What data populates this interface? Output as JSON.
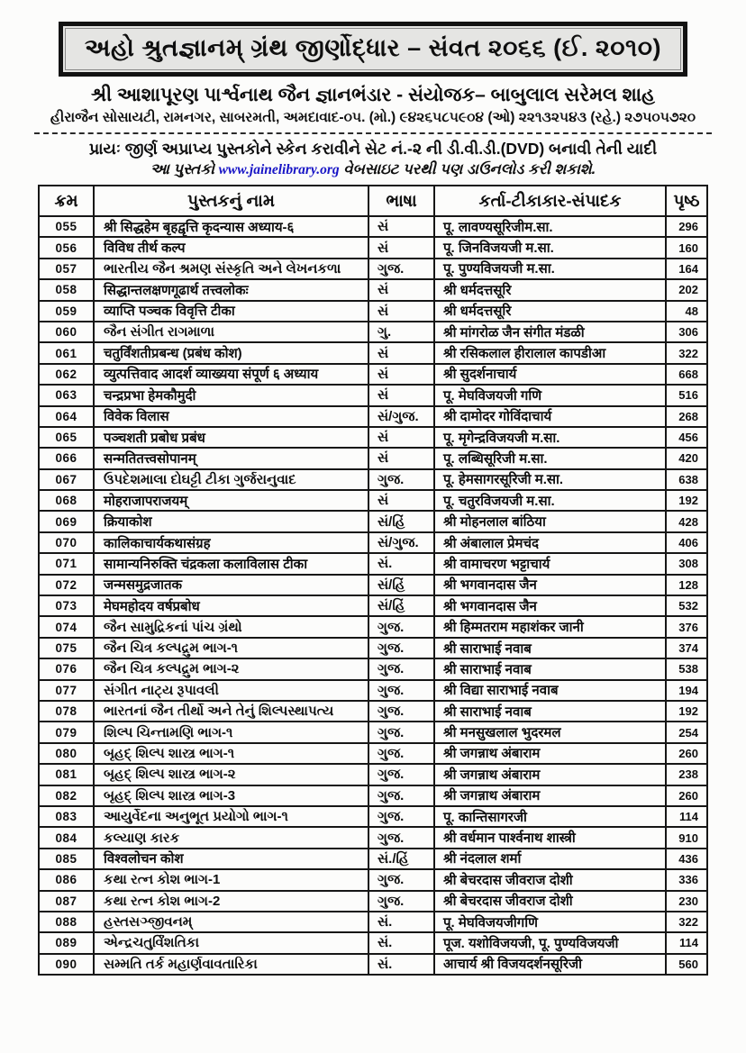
{
  "header": {
    "title": "અહો શ્રુતજ્ઞાનમ્ ગ્રંથ જીર્ણોદ્ધાર – સંવત ૨૦૬૬ (ઈ. ૨૦૧૦)",
    "organization": "શ્રી આશાપૂરણ પાર્શ્વનાથ જૈન જ્ઞાનભંડાર - સંયોજક– બાબુલાલ સરેમલ શાહ",
    "address": "હીરાજૈન સોસાયટી, રામનગર, સાબરમતી, અમદાવાદ-૦૫. (મો.) ૯૪૨૬૫૮૫૯૦૪ (ઓ) ૨૨૧૩૨૫૪૩ (રહે.) ૨૭૫૦૫૭૨૦"
  },
  "intro": {
    "line1": "પ્રાયઃ જીર્ણ અપ્રાપ્ય પુસ્તકોને સ્કેન કરાવીને સેટ નં.-૨ ની ડી.વી.ડી.(DVD) બનાવી તેની યાદી",
    "line2_prefix": "આ પુસ્તકો ",
    "link_text": "www.jainelibrary.org",
    "line2_suffix": " વેબસાઇટ પરથી પણ ડાઉનલોડ કરી શકાશે."
  },
  "colors": {
    "link_blue": "#1815c6",
    "title_box_fill": "#e5e5e3",
    "border_black": "#161616"
  },
  "table": {
    "columns": [
      "ક્રમ",
      "પુસ્તકનું નામ",
      "ભાષા",
      "કર્તા-ટીકાકાર-સંપાદક",
      "પૃષ્ઠ"
    ],
    "rows": [
      {
        "no": "055",
        "name": "श्री सिद्धहेम बृहद्वृत्ति कृदन्यास अध्याय-६",
        "lang": "સં",
        "author": "पू. लावण्यसूरिजीम.सा.",
        "pages": "296"
      },
      {
        "no": "056",
        "name": "विविध तीर्थ कल्प",
        "lang": "સં",
        "author": "पू. जिनविजयजी म.सा.",
        "pages": "160"
      },
      {
        "no": "057",
        "name": "ભારતીય જૈન શ્રમણ સંસ્કૃતિ અને લેખનકળા",
        "lang": "ગુજ.",
        "author": "पू. पुण्यविजयजी म.सा.",
        "pages": "164"
      },
      {
        "no": "058",
        "name": "सिद्धान्तलक्षणगूढार्थ तत्त्वलोकः",
        "lang": "સં",
        "author": "श्री धर्मदत्तसूरि",
        "pages": "202"
      },
      {
        "no": "059",
        "name": "व्याप्ति पञ्चक विवृत्ति टीका",
        "lang": "સં",
        "author": "श्री धर्मदत्तसूरि",
        "pages": "48"
      },
      {
        "no": "060",
        "name": "જૈન સંગીત રાગમાળા",
        "lang": "ગુ.",
        "author": "श्री मांगरोळ जैन संगीत मंडळी",
        "pages": "306"
      },
      {
        "no": "061",
        "name": "चतुर्विंशतीप्रबन्ध (प्रबंध कोश)",
        "lang": "સં",
        "author": "श्री रसिकलाल हीरालाल कापडीआ",
        "pages": "322"
      },
      {
        "no": "062",
        "name": "व्युत्पत्तिवाद आदर्श व्याख्यया संपूर्ण ६ अध्याय",
        "lang": "સં",
        "author": "श्री सुदर्शनाचार्य",
        "pages": "668"
      },
      {
        "no": "063",
        "name": "चन्द्रप्रभा हेमकौमुदी",
        "lang": "સં",
        "author": "पू. मेघविजयजी गणि",
        "pages": "516"
      },
      {
        "no": "064",
        "name": "विवेक विलास",
        "lang": "સં/ગુજ.",
        "author": "श्री दामोदर गोविंदाचार्य",
        "pages": "268"
      },
      {
        "no": "065",
        "name": "पञ्चशती प्रबोध प्रबंध",
        "lang": "સં",
        "author": "पू. मृगेन्द्रविजयजी म.सा.",
        "pages": "456"
      },
      {
        "no": "066",
        "name": "सन्मतितत्त्वसोपानम्",
        "lang": "સં",
        "author": "पू. लब्धिसूरिजी म.सा.",
        "pages": "420"
      },
      {
        "no": "067",
        "name": "ઉપદેશમાલા દોઘટ્ટી ટીકા ગુર્જરાનુવાદ",
        "lang": "ગુજ.",
        "author": "पू. हेमसागरसूरिजी म.सा.",
        "pages": "638"
      },
      {
        "no": "068",
        "name": "मोहराजापराजयम्",
        "lang": "સં",
        "author": "पू. चतुरविजयजी म.सा.",
        "pages": "192"
      },
      {
        "no": "069",
        "name": "क्रियाकोश",
        "lang": "સં/હિં",
        "author": "श्री मोहनलाल बांठिया",
        "pages": "428"
      },
      {
        "no": "070",
        "name": "कालिकाचार्यकथासंग्रह",
        "lang": "સં/ગુજ.",
        "author": "श्री अंबालाल प्रेमचंद",
        "pages": "406"
      },
      {
        "no": "071",
        "name": "सामान्यनिरुक्ति चंद्रकला कलाविलास टीका",
        "lang": "સં.",
        "author": "श्री वामाचरण भट्टाचार्य",
        "pages": "308"
      },
      {
        "no": "072",
        "name": "जन्मसमुद्रजातक",
        "lang": "સં/હિં",
        "author": "श्री भगवानदास जैन",
        "pages": "128"
      },
      {
        "no": "073",
        "name": "मेघमहोदय वर्षप्रबोध",
        "lang": "સં/હિં",
        "author": "श्री भगवानदास जैन",
        "pages": "532"
      },
      {
        "no": "074",
        "name": "જૈન સામુદ્રિકનાં પાંચ ગ્રંથો",
        "lang": "ગુજ.",
        "author": "श्री हिम्मतराम महाशंकर जानी",
        "pages": "376"
      },
      {
        "no": "075",
        "name": "જૈન ચિત્ર કલ્પદ્રુમ ભાગ-૧",
        "lang": "ગુજ.",
        "author": "श्री साराभाई नवाब",
        "pages": "374"
      },
      {
        "no": "076",
        "name": "જૈન ચિત્ર કલ્પદ્રુમ ભાગ-૨",
        "lang": "ગુજ.",
        "author": "श्री साराभाई नवाब",
        "pages": "538"
      },
      {
        "no": "077",
        "name": "સંગીત નાટ્ય રૂપાવલી",
        "lang": "ગુજ.",
        "author": "श्री विद्या साराभाई नवाब",
        "pages": "194"
      },
      {
        "no": "078",
        "name": "ભારતનાં  જૈન તીર્થો અને તેનું શિલ્પસ્થાપત્ય",
        "lang": "ગુજ.",
        "author": "श्री साराभाई नवाब",
        "pages": "192"
      },
      {
        "no": "079",
        "name": "શિલ્પ ચિન્તામણિ ભાગ-૧",
        "lang": "ગુજ.",
        "author": "श्री मनसुखलाल भुदरमल",
        "pages": "254"
      },
      {
        "no": "080",
        "name": "બૃહદ્ શિલ્પ શાસ્ત્ર ભાગ-૧",
        "lang": "ગુજ.",
        "author": "श्री जगन्नाथ अंबाराम",
        "pages": "260"
      },
      {
        "no": "081",
        "name": "બૃહદ્ શિલ્પ શાસ્ત્ર ભાગ-૨",
        "lang": "ગુજ.",
        "author": "श्री जगन्नाथ अंबाराम",
        "pages": "238"
      },
      {
        "no": "082",
        "name": "બૃહદ્ શિલ્પ શાસ્ત્ર ભાગ-3",
        "lang": "ગુજ.",
        "author": "श्री जगन्नाथ अंबाराम",
        "pages": "260"
      },
      {
        "no": "083",
        "name": "આયુર્વેદના અનુભૂત પ્રયોગો ભાગ-૧",
        "lang": "ગુજ.",
        "author": "पू. कान्तिसागरजी",
        "pages": "114"
      },
      {
        "no": "084",
        "name": "કલ્યાણ કારક",
        "lang": "ગુજ.",
        "author": "श्री वर्धमान पार्श्वनाथ शास्त्री",
        "pages": "910"
      },
      {
        "no": "085",
        "name": "विश्वलोचन कोश",
        "lang": "સં./હિં",
        "author": "श्री नंदलाल शर्मा",
        "pages": "436"
      },
      {
        "no": "086",
        "name": "કથા રત્ન કોશ ભાગ-1",
        "lang": "ગુજ.",
        "author": "श्री बेचरदास जीवराज दोशी",
        "pages": "336"
      },
      {
        "no": "087",
        "name": "કથા રત્ન કોશ ભાગ-2",
        "lang": "ગુજ.",
        "author": "श्री बेचरदास जीवराज दोशी",
        "pages": "230"
      },
      {
        "no": "088",
        "name": "હસ્તસઞ્જીવનમ્",
        "lang": "સં.",
        "author": "पू. मेघविजयजीगणि",
        "pages": "322"
      },
      {
        "no": "089",
        "name": "એન્દ્રચતુર્વિંશતિકા",
        "lang": "સં.",
        "author": "पूज. यशोविजयजी, पू. पुण्यविजयजी",
        "pages": "114"
      },
      {
        "no": "090",
        "name": "સમ્મતિ તર્ક મહાર્ણવાવતારિકા",
        "lang": "સં.",
        "author": "आचार्य श्री विजयदर्शनसूरिजी",
        "pages": "560"
      }
    ]
  }
}
